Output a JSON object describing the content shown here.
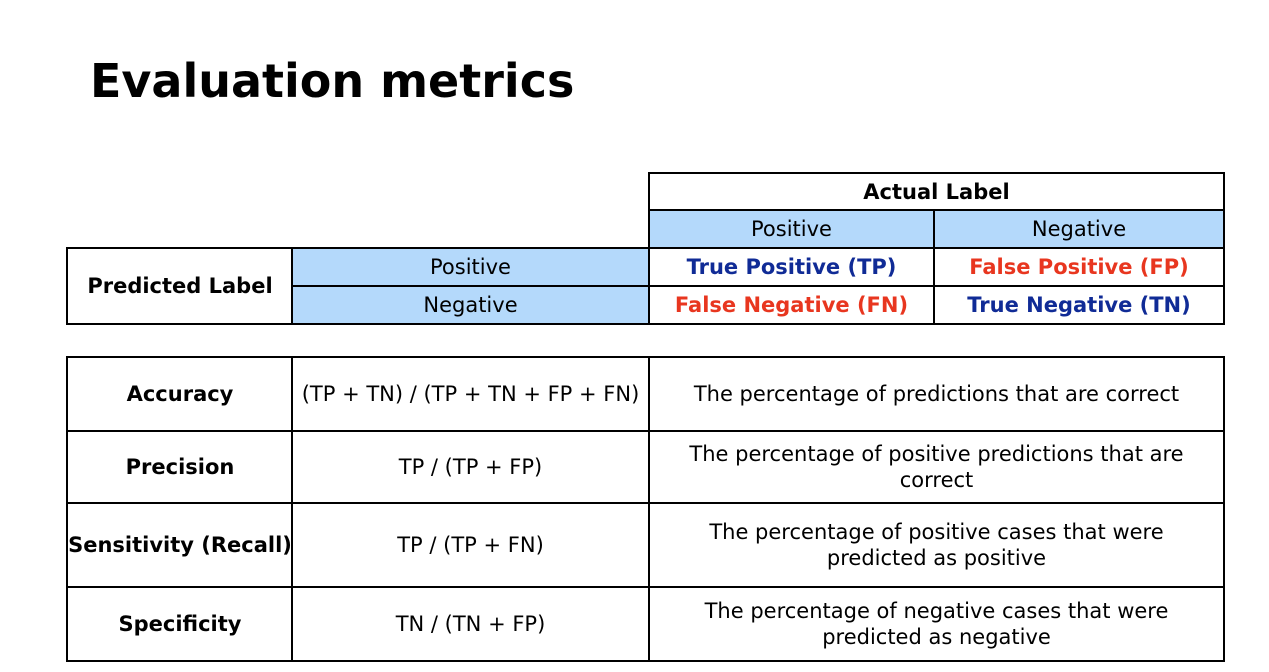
{
  "title": "Evaluation metrics",
  "confusion_matrix": {
    "actual_header": "Actual Label",
    "actual_positive": "Positive",
    "actual_negative": "Negative",
    "predicted_header": "Predicted Label",
    "predicted_positive": "Positive",
    "predicted_negative": "Negative",
    "tp": "True Positive (TP)",
    "fp": "False Positive (FP)",
    "fn": "False Negative (FN)",
    "tn": "True Negative (TN)",
    "colors": {
      "header_fill": "#b4d9fb",
      "correct_text": "#102b96",
      "error_text": "#e8361f"
    }
  },
  "metrics": [
    {
      "name": "Accuracy",
      "formula": "(TP + TN) / (TP + TN + FP + FN)",
      "description": "The percentage of predictions that are correct"
    },
    {
      "name": "Precision",
      "formula": "TP / (TP + FP)",
      "description": "The percentage of positive predictions that are correct"
    },
    {
      "name": "Sensitivity (Recall)",
      "formula": "TP / (TP + FN)",
      "description": "The percentage of positive cases that were predicted as positive"
    },
    {
      "name": "Specificity",
      "formula": "TN / (TN + FP)",
      "description": "The percentage of negative cases that were predicted as negative"
    }
  ]
}
